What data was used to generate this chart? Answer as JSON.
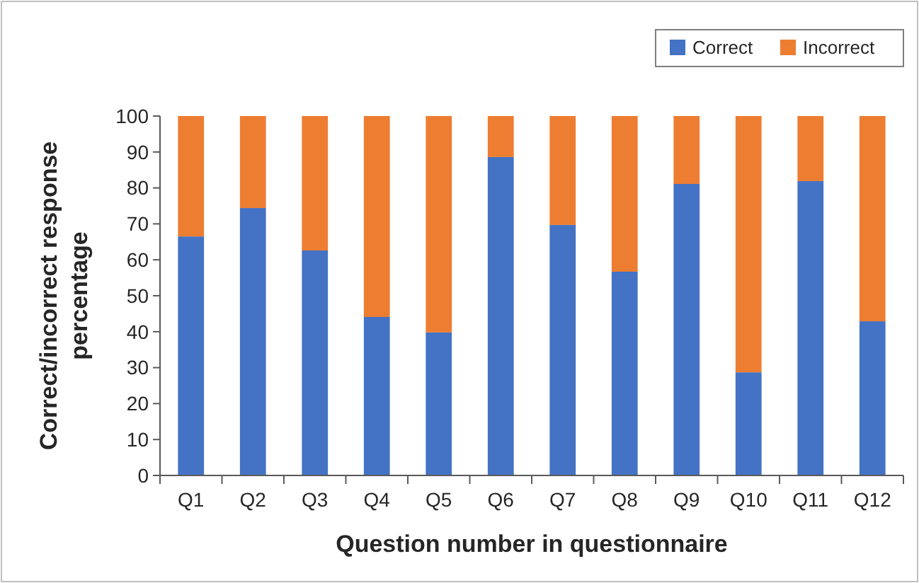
{
  "chart_data": {
    "type": "bar",
    "stacked": true,
    "xlabel": "Question number in questionnaire",
    "ylabel": "Correct/incorrect response percentage",
    "categories": [
      "Q1",
      "Q2",
      "Q3",
      "Q4",
      "Q5",
      "Q6",
      "Q7",
      "Q8",
      "Q9",
      "Q10",
      "Q11",
      "Q12"
    ],
    "series": [
      {
        "name": "Correct",
        "color": "#4472c4",
        "values": [
          66.5,
          74.4,
          62.6,
          44.1,
          39.8,
          88.6,
          69.7,
          56.7,
          81.1,
          28.7,
          81.9,
          42.9
        ]
      },
      {
        "name": "Incorrect",
        "color": "#ed7d31",
        "values": [
          33.5,
          25.6,
          37.4,
          55.9,
          60.2,
          11.4,
          30.3,
          43.3,
          18.9,
          71.3,
          18.1,
          57.1
        ]
      }
    ],
    "ylim": [
      0,
      100
    ],
    "yticks": [
      0,
      10,
      20,
      30,
      40,
      50,
      60,
      70,
      80,
      90,
      100
    ],
    "grid": false,
    "legend": "top right"
  }
}
